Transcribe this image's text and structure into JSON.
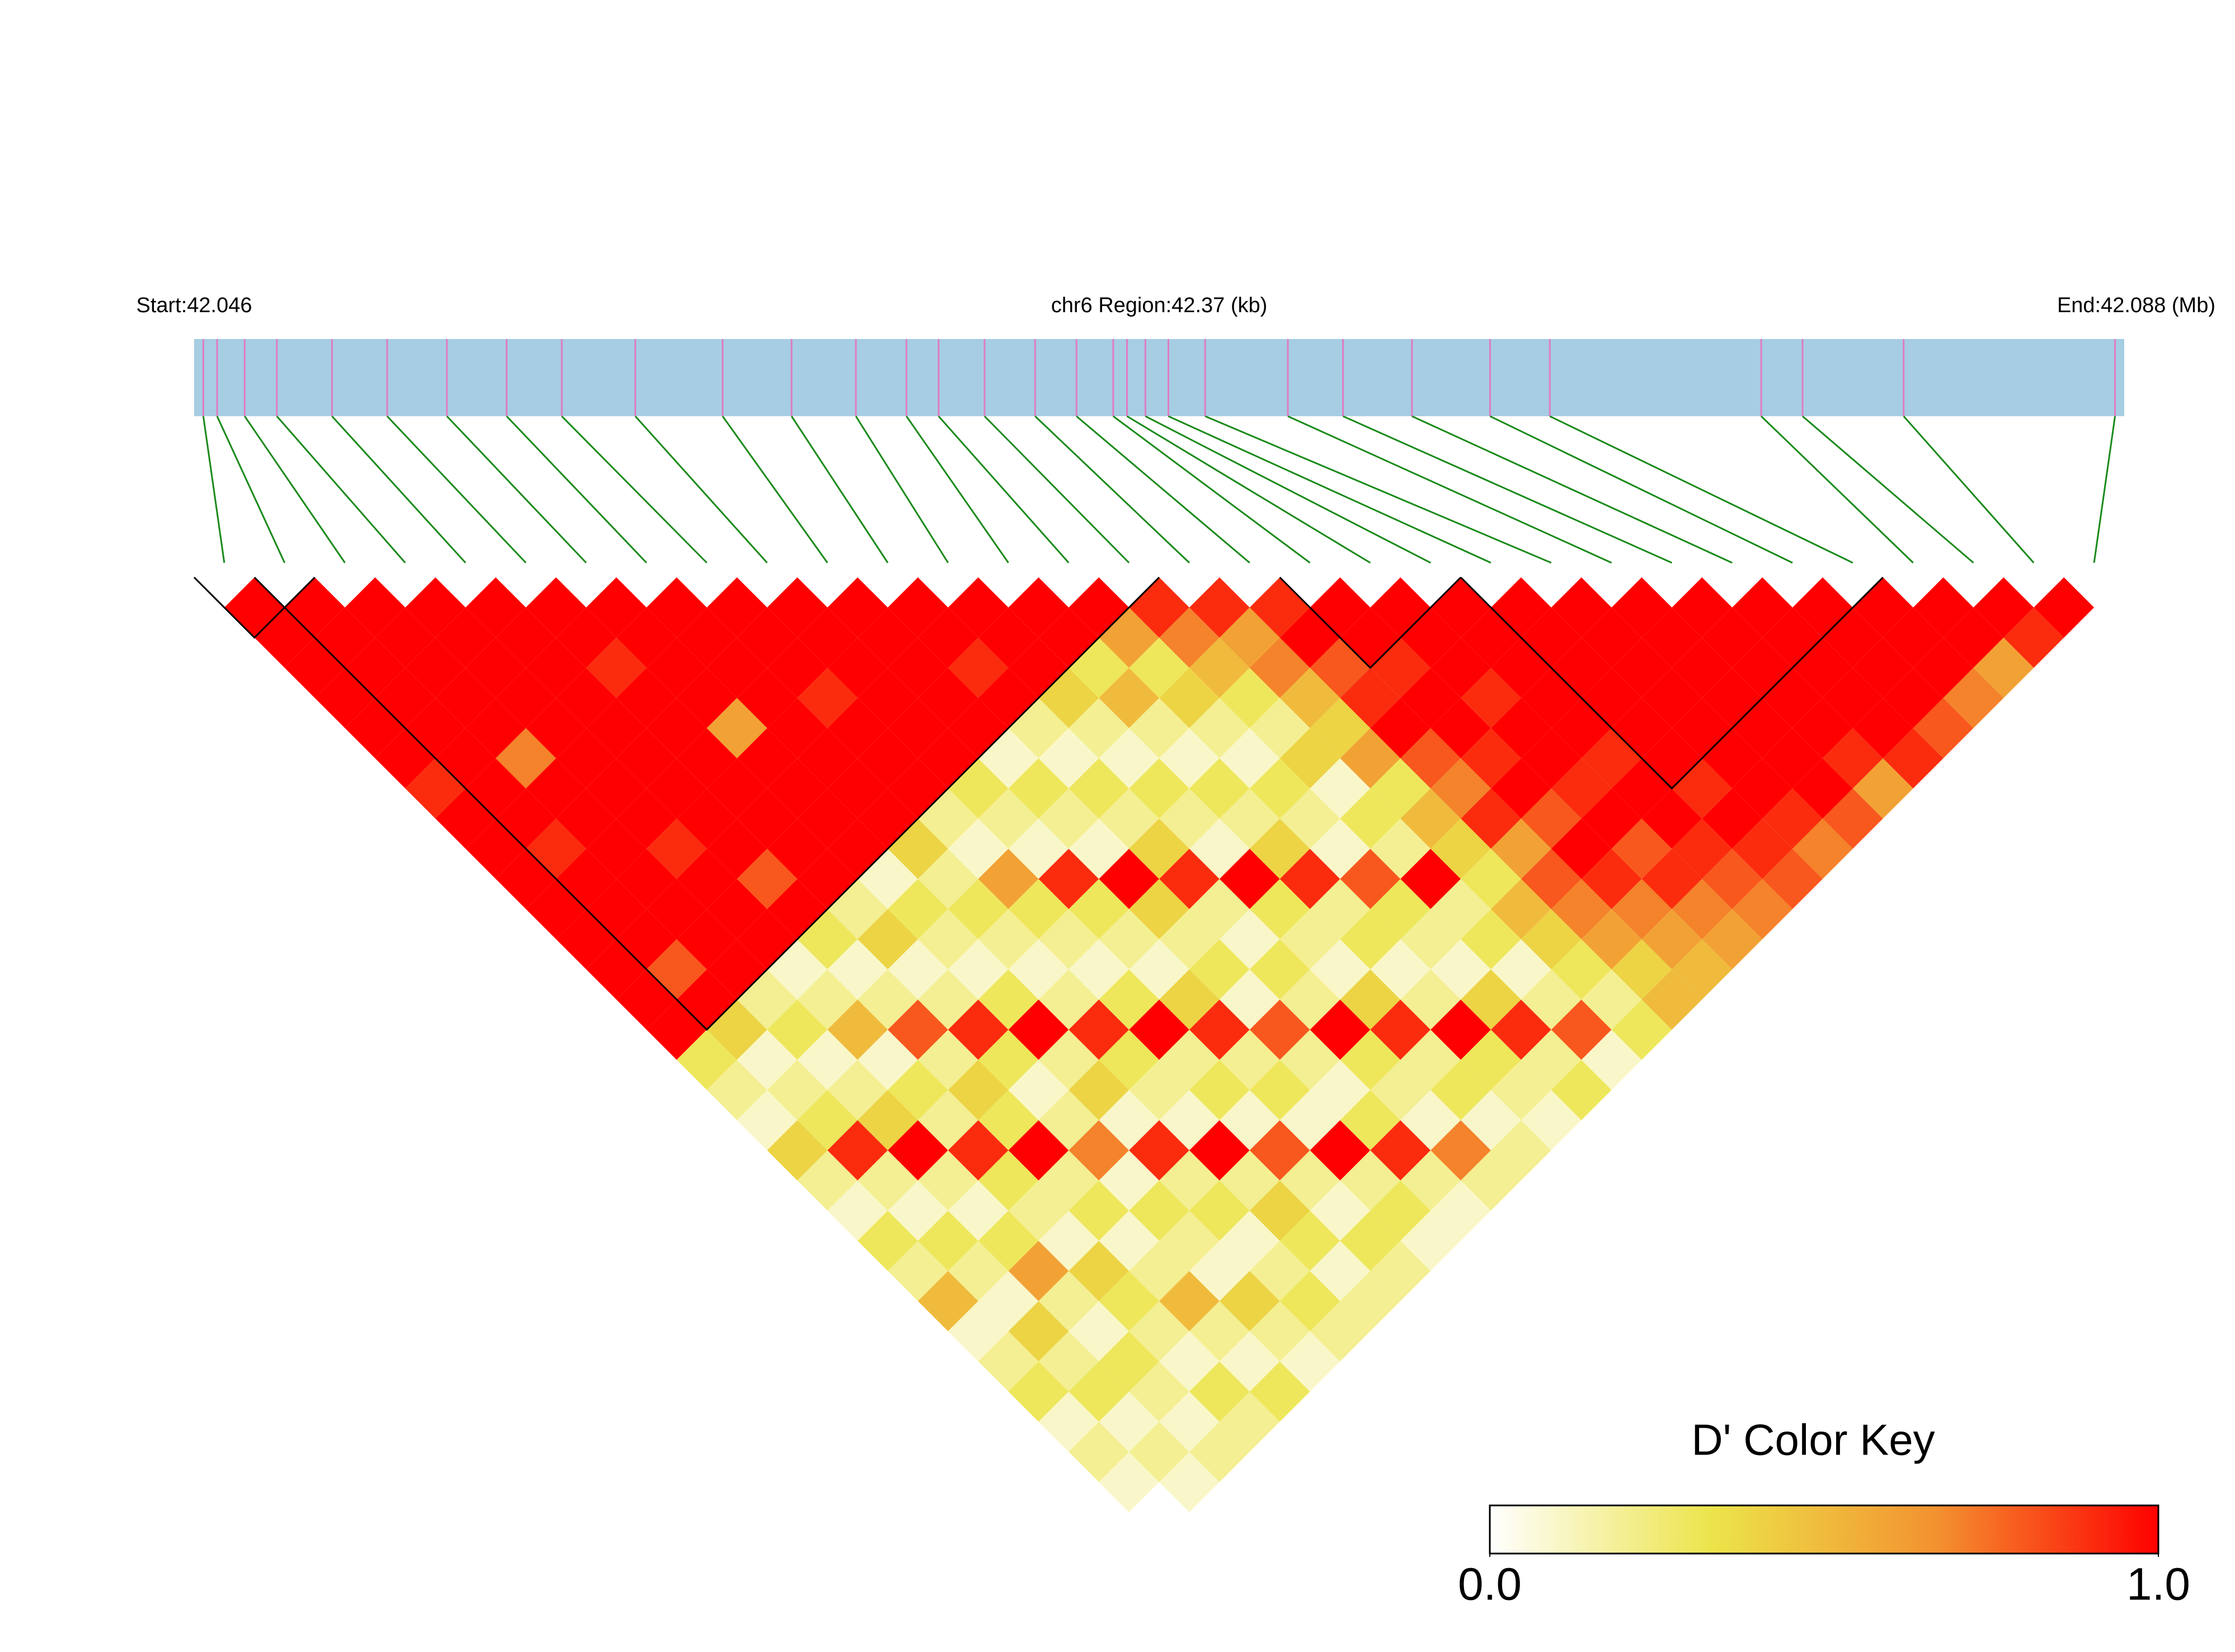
{
  "chart_data": {
    "type": "ld_heatmap",
    "start_label": "Start:42.046",
    "region_label": "chr6 Region:42.37 (kb)",
    "end_label": "End:42.088 (Mb)",
    "key_title": "D' Color Key",
    "key_lim": [
      0,
      1
    ],
    "key_ticks": [
      {
        "value": 0,
        "label": "0.0"
      },
      {
        "value": 1,
        "label": "1.0"
      }
    ],
    "colors": [
      "#ffffff",
      "#ece44a",
      "#f39230",
      "#ff0000"
    ],
    "bar_color": "#a6cde2",
    "snp_color": "#e07bc4",
    "connector_color": "#1a8a1a",
    "xlim": [
      42.046,
      42.088
    ],
    "positions": [
      42.0462,
      42.0465,
      42.0471,
      42.0478,
      42.049,
      42.0502,
      42.0515,
      42.0528,
      42.054,
      42.0556,
      42.0575,
      42.059,
      42.0604,
      42.0615,
      42.0622,
      42.0632,
      42.0643,
      42.0652,
      42.066,
      42.0663,
      42.0667,
      42.0672,
      42.068,
      42.0698,
      42.071,
      42.0725,
      42.0742,
      42.0755,
      42.0801,
      42.081,
      42.0832,
      42.0878
    ],
    "blocks": [
      [
        0,
        1
      ],
      [
        1,
        15
      ],
      [
        18,
        20
      ],
      [
        21,
        27
      ]
    ],
    "ld": [
      [
        1,
        1,
        1,
        1,
        1,
        1,
        0.9,
        1,
        1,
        1,
        1,
        1,
        1,
        1,
        1,
        0.3,
        0.2,
        0.1,
        0.4,
        0.2,
        0.1,
        0.3,
        0.2,
        0.5,
        0.1,
        0.2,
        0.3,
        0.1,
        0.2,
        0.1,
        0
      ],
      [
        1,
        1,
        1,
        1,
        1,
        1,
        1,
        1,
        0.9,
        1,
        1,
        1,
        0.8,
        1,
        0.4,
        0.1,
        0.2,
        0.3,
        0.9,
        0.2,
        0.1,
        0.3,
        0.2,
        0.1,
        0.4,
        0.2,
        0.3,
        0.1,
        0.2,
        0.1
      ],
      [
        1,
        1,
        1,
        1,
        1,
        0.7,
        1,
        1,
        1,
        1,
        1,
        1,
        1,
        0.2,
        0.3,
        0.1,
        0.2,
        0.4,
        1,
        0.2,
        0.1,
        0.3,
        0.6,
        0.2,
        0.1,
        0.3,
        0.2,
        0.1,
        0.2
      ],
      [
        1,
        1,
        1,
        1,
        1,
        1,
        1,
        1,
        0.9,
        1,
        1,
        1,
        0.1,
        0.2,
        0.5,
        0.1,
        0.3,
        0.2,
        0.9,
        0.3,
        0.2,
        0.1,
        0.4,
        0.3,
        0.2,
        0.1,
        0.3,
        0.2
      ],
      [
        1,
        1,
        1,
        1,
        1,
        1,
        1,
        1,
        1,
        0.8,
        1,
        0.3,
        0.1,
        0.2,
        0.8,
        0.2,
        0.4,
        0.3,
        1,
        0.2,
        0.3,
        0.1,
        0.2,
        0.5,
        0.2,
        0.1,
        0.3
      ],
      [
        1,
        1,
        0.9,
        1,
        1,
        1,
        1,
        1,
        1,
        1,
        0.2,
        0.4,
        0.1,
        0.2,
        0.9,
        0.3,
        0.1,
        0.2,
        0.7,
        0.1,
        0.3,
        0.2,
        0.1,
        0.4,
        0.2,
        0.1
      ],
      [
        1,
        1,
        1,
        1,
        0.6,
        1,
        1,
        1,
        1,
        0.1,
        0.3,
        0.2,
        0.1,
        0.3,
        1,
        0.2,
        0.4,
        0.1,
        0.9,
        0.2,
        0.3,
        0.1,
        0.2,
        0.3,
        0.2
      ],
      [
        1,
        1,
        1,
        1,
        1,
        1,
        1,
        1,
        0.4,
        0.2,
        0.3,
        0.2,
        0.1,
        0.2,
        0.9,
        0.3,
        0.2,
        0.1,
        1,
        0.2,
        0.4,
        0.3,
        0.1,
        0.2
      ],
      [
        1,
        1,
        1,
        0.9,
        1,
        1,
        1,
        0.2,
        0.1,
        0.6,
        0.3,
        0.2,
        0.1,
        0.3,
        1,
        0.2,
        0.3,
        0.1,
        0.8,
        0.2,
        0.1,
        0.3,
        0.2
      ],
      [
        1,
        1,
        1,
        1,
        1,
        1,
        0.3,
        0.2,
        0.1,
        0.9,
        0.3,
        0.2,
        0.1,
        0.4,
        0.9,
        0.2,
        0.3,
        0.1,
        1,
        0.2,
        0.3,
        0.1
      ],
      [
        1,
        1,
        1,
        1,
        1,
        0.1,
        0.3,
        0.2,
        0.1,
        1,
        0.4,
        0.2,
        0.3,
        0.1,
        0.8,
        0.2,
        0.1,
        0.3,
        0.9,
        0.2,
        0.1
      ],
      [
        1,
        1,
        0.9,
        1,
        0.2,
        0.1,
        0.3,
        0.2,
        0.4,
        0.9,
        0.2,
        0.1,
        0.3,
        0.2,
        1,
        0.3,
        0.2,
        0.1,
        0.7,
        0.2
      ],
      [
        1,
        1,
        1,
        0.4,
        0.2,
        0.1,
        0.3,
        0.2,
        0.1,
        1,
        0.3,
        0.2,
        0.1,
        0.4,
        0.9,
        0.2,
        0.3,
        0.1,
        0.2
      ],
      [
        1,
        1,
        0.3,
        0.5,
        0.2,
        0.1,
        0.3,
        0.2,
        0.4,
        0.9,
        0.2,
        0.3,
        0.1,
        0.2,
        1,
        0.3,
        0.2,
        0.1
      ],
      [
        1,
        0.6,
        0.3,
        0.4,
        0.2,
        0.1,
        0.3,
        0.2,
        0.1,
        0.8,
        0.3,
        0.2,
        0.1,
        0.4,
        0.9,
        0.2,
        0.3
      ],
      [
        0.9,
        0.7,
        0.5,
        0.3,
        0.2,
        0.4,
        0.1,
        0.3,
        0.2,
        1,
        0.2,
        0.3,
        0.1,
        0.2,
        0.8,
        0.1
      ],
      [
        0.9,
        0.6,
        0.7,
        0.5,
        0.4,
        0.6,
        0.3,
        0.5,
        0.4,
        0.3,
        0.5,
        0.4,
        0.3,
        0.2,
        0.3
      ],
      [
        0.9,
        1,
        0.8,
        0.9,
        1,
        0.8,
        0.7,
        0.9,
        0.6,
        0.8,
        0.7,
        0.6,
        0.4,
        0.5
      ],
      [
        1,
        1,
        0.9,
        1,
        1,
        0.9,
        1,
        0.8,
        1,
        0.9,
        0.7,
        0.6,
        0.5
      ],
      [
        1,
        1,
        1,
        0.9,
        1,
        1,
        0.9,
        1,
        0.8,
        0.9,
        0.7,
        0.6
      ],
      [
        1,
        1,
        1,
        1,
        1,
        0.9,
        1,
        1,
        0.9,
        0.8,
        0.7
      ],
      [
        1,
        1,
        1,
        1,
        1,
        1,
        0.9,
        1,
        0.9,
        0.8
      ],
      [
        1,
        1,
        1,
        1,
        1,
        1,
        1,
        0.9,
        0.7
      ],
      [
        1,
        1,
        1,
        1,
        1,
        1,
        1,
        0.8
      ],
      [
        1,
        1,
        1,
        1,
        1,
        0.9,
        0.6
      ],
      [
        1,
        1,
        1,
        1,
        1,
        0.9
      ],
      [
        1,
        1,
        1,
        1,
        0.8
      ],
      [
        1,
        1,
        1,
        0.7
      ],
      [
        1,
        1,
        0.6
      ],
      [
        1,
        0.9
      ],
      [
        1
      ]
    ]
  }
}
